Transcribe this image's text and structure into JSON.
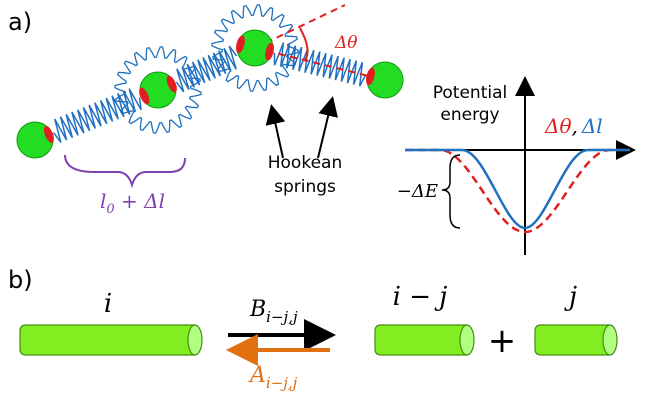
{
  "panel_a": {
    "label": "a)",
    "angle_label": "Δθ",
    "springs_label": [
      "Hookean",
      "springs"
    ],
    "y_axis_label": [
      "Potential",
      "energy"
    ],
    "x_axis_label": {
      "angle": "Δθ",
      "separator": ",",
      "length": "Δl"
    },
    "well_depth_label": "−ΔE",
    "rest_length_label": {
      "base": "l",
      "subscript": "0",
      "suffix": " + Δl"
    }
  },
  "panel_b": {
    "label": "b)",
    "species": [
      "i",
      "i − j",
      "j"
    ],
    "plus": "+",
    "forward_rate": {
      "symbol": "B",
      "subscript": "i−j,j"
    },
    "backward_rate": {
      "symbol": "A",
      "subscript": "i−j,j"
    }
  }
}
